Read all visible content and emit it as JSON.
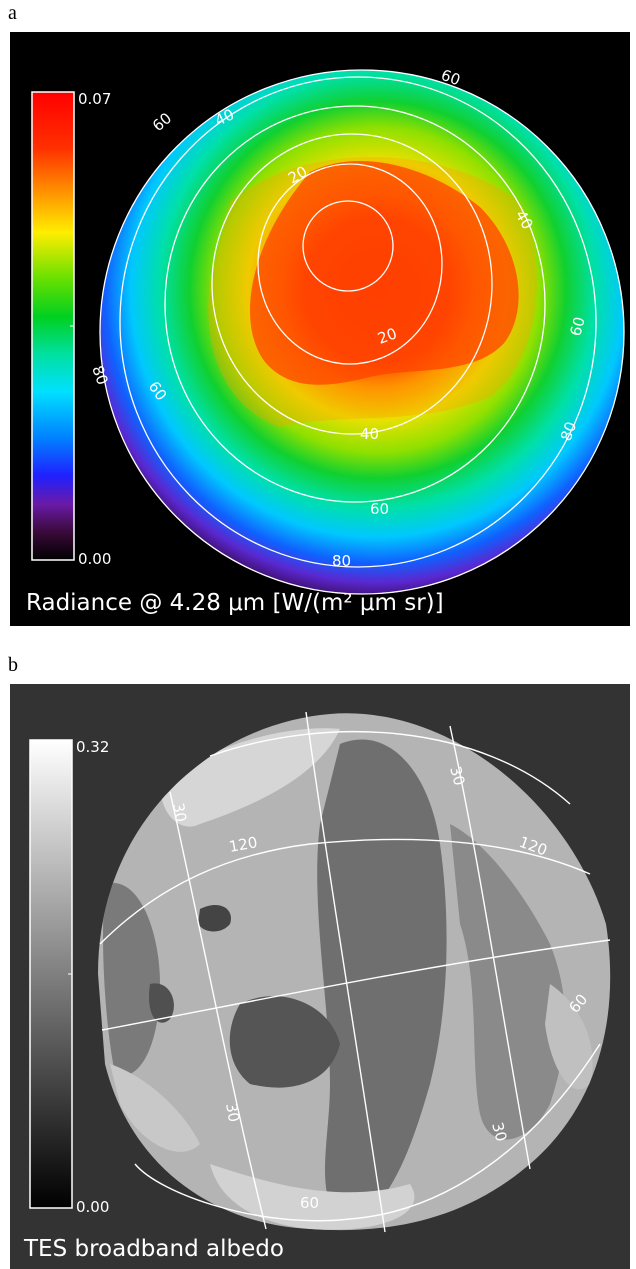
{
  "panel_a": {
    "letter": "a",
    "colorbar": {
      "max_label": "0.07",
      "min_label": "0.00"
    },
    "caption": "Radiance @ 4.28 μm  [W/(m² μm sr)]",
    "contour_labels": [
      "60",
      "40",
      "20",
      "20",
      "40",
      "60",
      "80",
      "60",
      "40",
      "60",
      "80",
      "60",
      "80"
    ]
  },
  "panel_b": {
    "letter": "b",
    "colorbar": {
      "max_label": "0.32",
      "min_label": "0.00"
    },
    "caption": "TES broadband albedo",
    "grid_labels": [
      "30",
      "30",
      "120",
      "120",
      "60",
      "30",
      "30",
      "60"
    ]
  }
}
